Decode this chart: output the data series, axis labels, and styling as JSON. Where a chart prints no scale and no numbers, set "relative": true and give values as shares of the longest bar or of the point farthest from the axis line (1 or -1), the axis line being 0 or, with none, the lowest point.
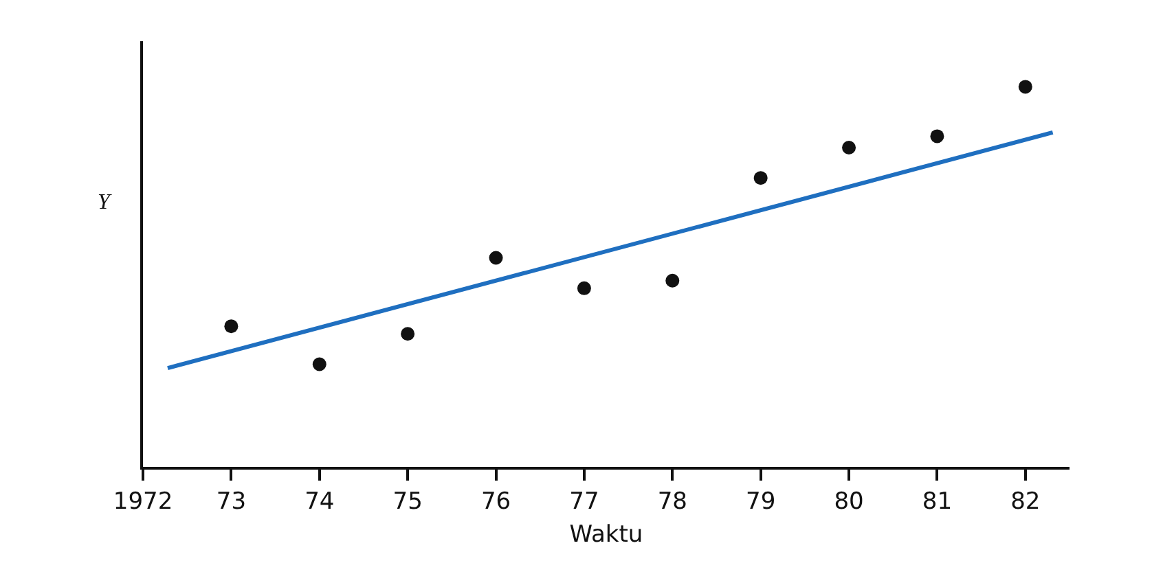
{
  "chart_data": {
    "type": "scatter",
    "xlabel": "Waktu",
    "ylabel": "Y",
    "relative": true,
    "grid": false,
    "x": [
      1973,
      1974,
      1975,
      1976,
      1977,
      1978,
      1979,
      1980,
      1981,
      1982
    ],
    "xlim": [
      1972,
      1982.5
    ],
    "xticks": [
      1972,
      {
        "value": 1973,
        "label": "73"
      },
      {
        "value": 1974,
        "label": "74"
      },
      {
        "value": 1975,
        "label": "75"
      },
      {
        "value": 1976,
        "label": "76"
      },
      {
        "value": 1977,
        "label": "77"
      },
      {
        "value": 1978,
        "label": "78"
      },
      {
        "value": 1979,
        "label": "79"
      },
      {
        "value": 1980,
        "label": "80"
      },
      {
        "value": 1981,
        "label": "81"
      },
      {
        "value": 1982,
        "label": "82"
      }
    ],
    "series": [
      {
        "marker": "circle",
        "color": "#111111",
        "values": [
          0.37,
          0.27,
          0.35,
          0.55,
          0.47,
          0.49,
          0.76,
          0.84,
          0.87,
          1
        ]
      },
      {
        "type": "line",
        "color": "#1f6fc0",
        "x": [
          1972.28,
          1982.31
        ],
        "values": [
          0.26,
          0.88
        ],
        "line_style": "solid"
      }
    ]
  }
}
